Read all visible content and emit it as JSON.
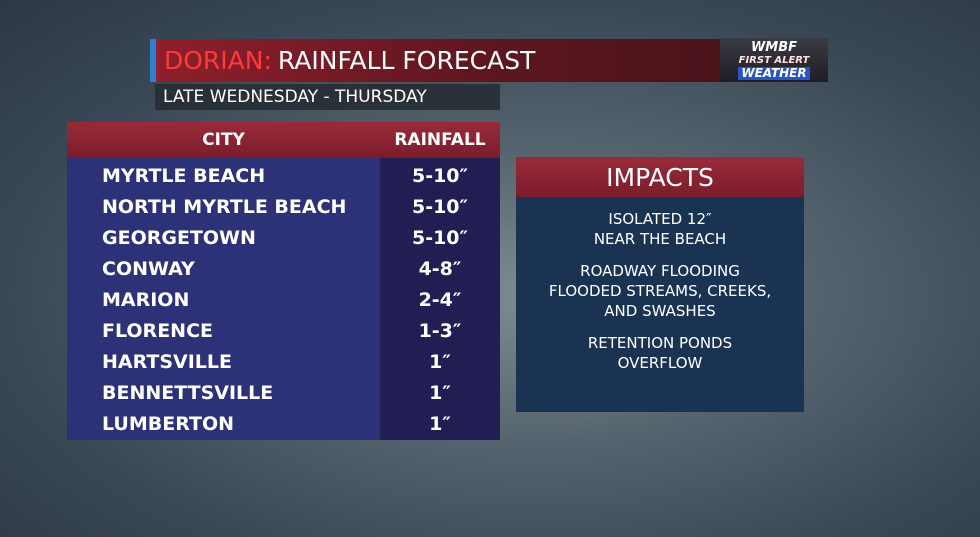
{
  "header": {
    "storm": "DORIAN:",
    "title": "RAINFALL FORECAST",
    "subtitle": "LATE WEDNESDAY - THURSDAY",
    "logo": [
      "WMBF",
      "FIRST ALERT",
      "WEATHER"
    ]
  },
  "table": {
    "columns": [
      "CITY",
      "RAINFALL"
    ],
    "rows": [
      [
        "MYRTLE BEACH",
        "5-10″"
      ],
      [
        "NORTH MYRTLE BEACH",
        "5-10″"
      ],
      [
        "GEORGETOWN",
        "5-10″"
      ],
      [
        "CONWAY",
        "4-8″"
      ],
      [
        "MARION",
        "2-4″"
      ],
      [
        "FLORENCE",
        "1-3″"
      ],
      [
        "HARTSVILLE",
        "1″"
      ],
      [
        "BENNETTSVILLE",
        "1″"
      ],
      [
        "LUMBERTON",
        "1″"
      ]
    ]
  },
  "impacts": {
    "title": "IMPACTS",
    "items": [
      [
        "ISOLATED 12″",
        "NEAR THE BEACH"
      ],
      [
        "ROADWAY FLOODING",
        "FLOODED STREAMS, CREEKS,",
        "AND SWASHES"
      ],
      [
        "RETENTION PONDS",
        "OVERFLOW"
      ]
    ]
  }
}
